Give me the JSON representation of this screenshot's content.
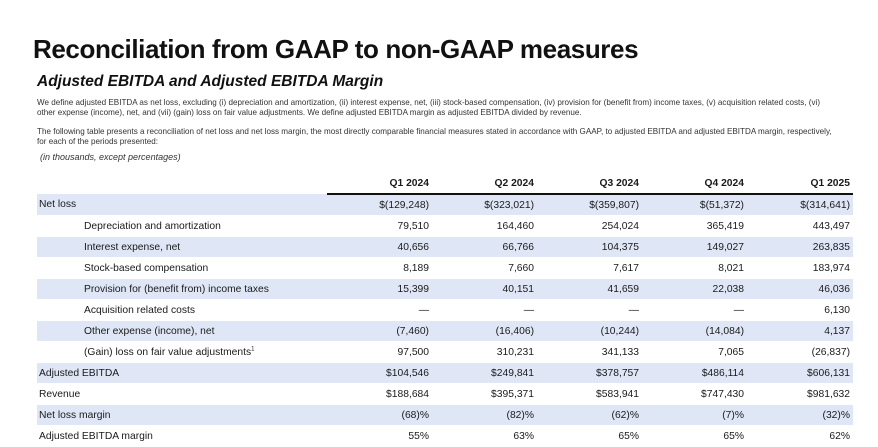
{
  "title": "Reconciliation from GAAP to non-GAAP measures",
  "subtitle": "Adjusted EBITDA and Adjusted EBITDA Margin",
  "paragraph1": "We define adjusted EBITDA as net loss, excluding (i) depreciation and amortization, (ii) interest expense, net, (iii) stock-based compensation, (iv) provision for (benefit from) income taxes, (v) acquisition related costs, (vi) other expense (income), net, and (vii) (gain) loss on fair value adjustments. We define adjusted EBITDA margin as adjusted EBITDA divided by revenue.",
  "paragraph2": "The following table presents a reconciliation of net loss and net loss margin, the most directly comparable financial measures stated in accordance with GAAP, to adjusted EBITDA and adjusted EBITDA margin, respectively, for each of the periods presented:",
  "units_note": "(in thousands, except percentages)",
  "table": {
    "columns": [
      "Q1 2024",
      "Q2 2024",
      "Q3 2024",
      "Q4 2024",
      "Q1 2025"
    ],
    "rows": [
      {
        "label": "Net loss",
        "values": [
          "$(129,248)",
          "$(323,021)",
          "$(359,807)",
          "$(51,372)",
          "$(314,641)"
        ]
      },
      {
        "label": "Depreciation and amortization",
        "values": [
          "79,510",
          "164,460",
          "254,024",
          "365,419",
          "443,497"
        ]
      },
      {
        "label": "Interest expense, net",
        "values": [
          "40,656",
          "66,766",
          "104,375",
          "149,027",
          "263,835"
        ]
      },
      {
        "label": "Stock-based compensation",
        "values": [
          "8,189",
          "7,660",
          "7,617",
          "8,021",
          "183,974"
        ]
      },
      {
        "label": "Provision for (benefit from) income taxes",
        "values": [
          "15,399",
          "40,151",
          "41,659",
          "22,038",
          "46,036"
        ]
      },
      {
        "label": "Acquisition related costs",
        "values": [
          "—",
          "—",
          "—",
          "—",
          "6,130"
        ]
      },
      {
        "label": "Other expense (income), net",
        "values": [
          "(7,460)",
          "(16,406)",
          "(10,244)",
          "(14,084)",
          "4,137"
        ]
      },
      {
        "label": "(Gain) loss on fair value adjustments",
        "footnote": "1",
        "values": [
          "97,500",
          "310,231",
          "341,133",
          "7,065",
          "(26,837)"
        ]
      },
      {
        "label": "Adjusted EBITDA",
        "values": [
          "$104,546",
          "$249,841",
          "$378,757",
          "$486,114",
          "$606,131"
        ]
      },
      {
        "label": "Revenue",
        "values": [
          "$188,684",
          "$395,371",
          "$583,941",
          "$747,430",
          "$981,632"
        ]
      },
      {
        "label": "Net loss margin",
        "values": [
          "(68)%",
          "(82)%",
          "(62)%",
          "(7)%",
          "(32)%"
        ]
      },
      {
        "label": "Adjusted EBITDA margin",
        "values": [
          "55%",
          "63%",
          "65%",
          "65%",
          "62%"
        ]
      }
    ]
  },
  "colors": {
    "row_shade": "#dfe7f7",
    "text": "#111111",
    "background": "#ffffff"
  }
}
